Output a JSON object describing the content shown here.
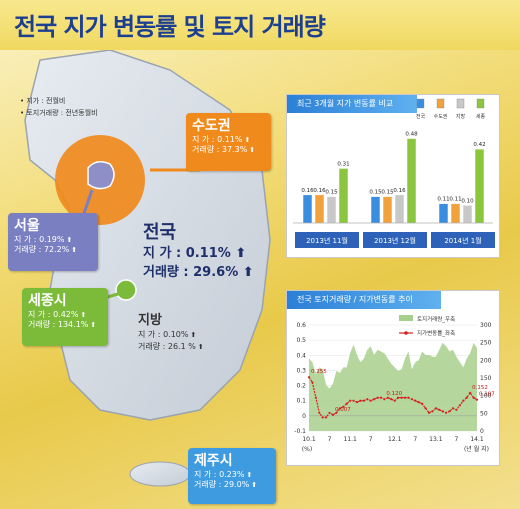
{
  "title": "전국 지가 변동률 및 토지 거래량",
  "notes": [
    "지가 : 전월비",
    "토지거래량 : 전년동월비"
  ],
  "regions": {
    "capital": {
      "name": "수도권",
      "land_label": "지  가 :",
      "land_value": "0.11%",
      "volume_label": "거래량 :",
      "volume_value": "37.3%",
      "color": "#f08a1c"
    },
    "seoul": {
      "name": "서울",
      "land_label": "지  가 :",
      "land_value": "0.19%",
      "volume_label": "거래량 :",
      "volume_value": "72.2%",
      "color": "#7a7fc2"
    },
    "sejong": {
      "name": "세종시",
      "land_label": "지  가 :",
      "land_value": "0.42%",
      "volume_label": "거래량 :",
      "volume_value": "134.1%",
      "color": "#7cbb3a"
    },
    "jibang": {
      "name": "지방",
      "land_label": "지  가 :",
      "land_value": "0.10%",
      "volume_label": "거래량 :",
      "volume_value": "26.1 %"
    },
    "jeju": {
      "name": "제주시",
      "land_label": "지  가 :",
      "land_value": "0.23%",
      "volume_label": "거래량 :",
      "volume_value": "29.0%",
      "color": "#3f9be0"
    }
  },
  "nation": {
    "name": "전국",
    "land_label": "지  가 :",
    "land_value": "0.11%",
    "volume_label": "거래량 :",
    "volume_value": "29.6%"
  },
  "chart_data": [
    {
      "type": "bar",
      "title": "최근 3개월 지가 변동률 비교",
      "series": [
        {
          "name": "전국",
          "color": "#3b8de0",
          "values": [
            0.16,
            0.15,
            0.11
          ]
        },
        {
          "name": "수도권",
          "color": "#f2a23c",
          "values": [
            0.16,
            0.15,
            0.11
          ]
        },
        {
          "name": "지방",
          "color": "#c8c8c8",
          "values": [
            0.15,
            0.16,
            0.1
          ]
        },
        {
          "name": "세종",
          "color": "#8cc63f",
          "values": [
            0.31,
            0.48,
            0.42
          ]
        }
      ],
      "categories": [
        "2013년 11월",
        "2013년 12월",
        "2014년 1월"
      ],
      "data_labels": [
        [
          "0.16",
          "0.16",
          "0.15",
          "0.31"
        ],
        [
          "0.15",
          "0.15",
          "0.16",
          "0.48"
        ],
        [
          "0.11",
          "0.11",
          "0.10",
          "0.42"
        ]
      ],
      "ylim": [
        0,
        0.5
      ]
    },
    {
      "type": "line",
      "title": "전국 토지거래량 / 지가변동률 추이",
      "x_labels": [
        "10.1",
        "7",
        "11.1",
        "7",
        "12.1",
        "7",
        "13.1",
        "7",
        "14.1"
      ],
      "x_unit": "(년 월 지)",
      "y_unit": "(%)",
      "y_left": {
        "ticks": [
          "0.6",
          "0.5",
          "0.4",
          "0.3",
          "0.2",
          "0.1",
          "0",
          "-0.1"
        ],
        "lim": [
          -0.1,
          0.6
        ]
      },
      "y_right": {
        "ticks": [
          "300",
          "250",
          "200",
          "150",
          "100",
          "50",
          "0"
        ],
        "lim": [
          0,
          300
        ]
      },
      "series": [
        {
          "name": "토지거래량_우축",
          "kind": "area",
          "color": "#a8d08d",
          "values": [
            205,
            195,
            160,
            180,
            175,
            130,
            120,
            135,
            170,
            165,
            180,
            180,
            220,
            245,
            215,
            195,
            205,
            230,
            240,
            215,
            230,
            225,
            220,
            205,
            190,
            180,
            170,
            175,
            205,
            225,
            175,
            195,
            200,
            225,
            215,
            215,
            210,
            210,
            230,
            250,
            240,
            225,
            230,
            210,
            195,
            180,
            205,
            220,
            250,
            235
          ]
        },
        {
          "name": "지가변동률_좌축",
          "kind": "line",
          "color": "#d62020",
          "values": [
            0.255,
            0.22,
            0.12,
            0.02,
            -0.01,
            -0.01,
            0.02,
            0.007,
            0.02,
            0.05,
            0.06,
            0.08,
            0.1,
            0.1,
            0.09,
            0.1,
            0.1,
            0.11,
            0.1,
            0.11,
            0.12,
            0.12,
            0.11,
            0.12,
            0.11,
            0.1,
            0.12,
            0.12,
            0.12,
            0.12,
            0.11,
            0.1,
            0.09,
            0.08,
            0.05,
            0.02,
            0.03,
            0.05,
            0.04,
            0.03,
            0.02,
            0.03,
            0.05,
            0.04,
            0.07,
            0.1,
            0.12,
            0.152,
            0.12,
            0.107
          ]
        }
      ],
      "annotations": [
        "0.255",
        "0.007",
        "0.120",
        "0.152",
        "0.107"
      ]
    }
  ]
}
